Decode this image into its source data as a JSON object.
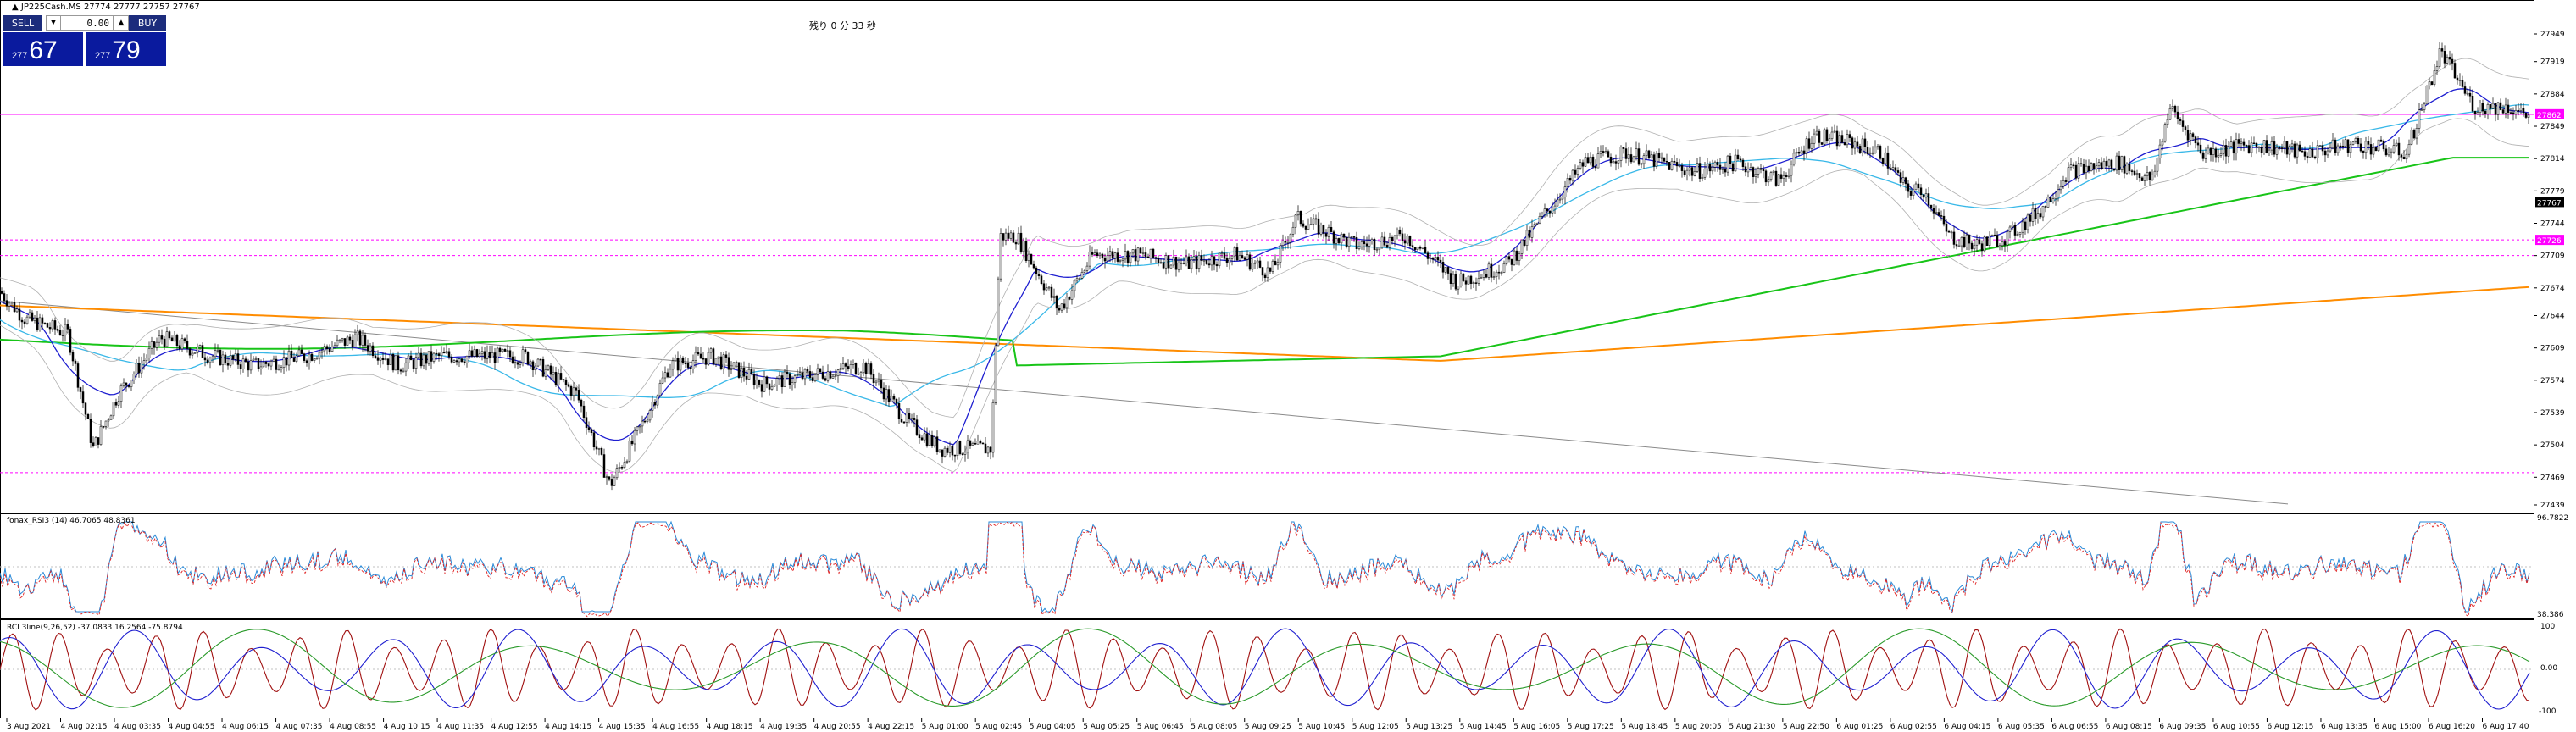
{
  "header": {
    "symbol_line": "JP225Cash.MS  27774 27777 27757 27767",
    "timer": "残り 0 分 33 秒"
  },
  "one_click": {
    "sell_label": "SELL",
    "buy_label": "BUY",
    "volume": "0.00",
    "sell_price_small": "277",
    "sell_price_big": "67",
    "buy_price_small": "277",
    "buy_price_big": "79"
  },
  "price_axis": {
    "labels": [
      "27949",
      "27919",
      "27884",
      "27849",
      "27814",
      "27779",
      "27744",
      "27709",
      "27674",
      "27644",
      "27609",
      "27574",
      "27539",
      "27504",
      "27469",
      "27439"
    ],
    "current_price": "27767",
    "line_tag_upper": "27862",
    "line_tag_lower": "27726"
  },
  "rsi_panel": {
    "title": "fonax_RSI3 (14) 46.7065 48.8361",
    "axis_top": "96.7822",
    "axis_bottom": "38.386"
  },
  "rci_panel": {
    "title": "RCI 3line(9,26,52) -37.0833 16.2564 -75.8794",
    "axis_top": "100",
    "axis_mid": "0.00",
    "axis_bottom": "-100"
  },
  "time_axis": {
    "labels": [
      "3 Aug 2021",
      "4 Aug 02:15",
      "4 Aug 03:35",
      "4 Aug 04:55",
      "4 Aug 06:15",
      "4 Aug 07:35",
      "4 Aug 08:55",
      "4 Aug 10:15",
      "4 Aug 11:35",
      "4 Aug 12:55",
      "4 Aug 14:15",
      "4 Aug 15:35",
      "4 Aug 16:55",
      "4 Aug 18:15",
      "4 Aug 19:35",
      "4 Aug 20:55",
      "4 Aug 22:15",
      "5 Aug 01:00",
      "5 Aug 02:45",
      "5 Aug 04:05",
      "5 Aug 05:25",
      "5 Aug 06:45",
      "5 Aug 08:05",
      "5 Aug 09:25",
      "5 Aug 10:45",
      "5 Aug 12:05",
      "5 Aug 13:25",
      "5 Aug 14:45",
      "5 Aug 16:05",
      "5 Aug 17:25",
      "5 Aug 18:45",
      "5 Aug 20:05",
      "5 Aug 21:30",
      "5 Aug 22:50",
      "6 Aug 01:25",
      "6 Aug 02:55",
      "6 Aug 04:15",
      "6 Aug 05:35",
      "6 Aug 06:55",
      "6 Aug 08:15",
      "6 Aug 09:35",
      "6 Aug 10:55",
      "6 Aug 12:15",
      "6 Aug 13:35",
      "6 Aug 15:00",
      "6 Aug 16:20",
      "6 Aug 17:40"
    ]
  },
  "colors": {
    "sell_bg": "#0a1a9e",
    "magenta_line": "#ff00ff",
    "ma_green": "#18c418",
    "ma_orange": "#ff8c00",
    "ma_blue": "#1f1fd0",
    "ma_cyan": "#39b8e8",
    "rci_red": "#a01010"
  },
  "icons": [
    "collapse-triangle-icon",
    "chevron-down-icon",
    "chevron-up-icon"
  ]
}
